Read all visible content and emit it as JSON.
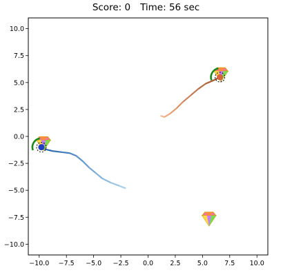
{
  "hud": {
    "score_label": "Score: 0",
    "time_label": "Time: 56 sec"
  },
  "axes": {
    "xlim": [
      -11,
      11
    ],
    "ylim": [
      -11,
      11
    ],
    "x_ticks": [
      -10.0,
      -7.5,
      -5.0,
      -2.5,
      0.0,
      2.5,
      5.0,
      7.5,
      10.0
    ],
    "x_tick_labels": [
      "−10.0",
      "−7.5",
      "−5.0",
      "−2.5",
      "0.0",
      "2.5",
      "5.0",
      "7.5",
      "10.0"
    ],
    "y_ticks": [
      10.0,
      7.5,
      5.0,
      2.5,
      0.0,
      -2.5,
      -5.0,
      -7.5,
      -10.0
    ],
    "y_tick_labels": [
      "10.0",
      "7.5",
      "5.0",
      "2.5",
      "0.0",
      "−2.5",
      "−5.0",
      "−7.5",
      "−10.0"
    ]
  },
  "game": {
    "agents": [
      {
        "name": "blue-agent",
        "color": "#1f3fbf",
        "position": [
          -9.8,
          -1.0
        ],
        "trail_color_start": "#1f5fa8",
        "trail_color_end": "#a8d0ea",
        "trail": [
          [
            -9.8,
            -1.0
          ],
          [
            -9.4,
            -1.2
          ],
          [
            -8.8,
            -1.35
          ],
          [
            -8.0,
            -1.45
          ],
          [
            -7.2,
            -1.55
          ],
          [
            -6.6,
            -1.8
          ],
          [
            -6.0,
            -2.3
          ],
          [
            -5.4,
            -2.9
          ],
          [
            -4.8,
            -3.4
          ],
          [
            -4.2,
            -3.9
          ],
          [
            -3.4,
            -4.3
          ],
          [
            -2.6,
            -4.6
          ],
          [
            -2.1,
            -4.8
          ]
        ],
        "heading_arc_color": "#1a8a1a"
      },
      {
        "name": "orange-agent",
        "color": "#d8643c",
        "position": [
          6.6,
          5.5
        ],
        "trail_color_start": "#a0522d",
        "trail_color_end": "#f5b88c",
        "trail": [
          [
            6.6,
            5.5
          ],
          [
            6.0,
            5.2
          ],
          [
            5.3,
            4.9
          ],
          [
            4.6,
            4.4
          ],
          [
            3.9,
            3.8
          ],
          [
            3.2,
            3.2
          ],
          [
            2.6,
            2.6
          ],
          [
            2.0,
            2.1
          ],
          [
            1.5,
            1.8
          ],
          [
            1.2,
            1.9
          ]
        ],
        "heading_arc_color": "#1a8a1a"
      }
    ],
    "gems": [
      {
        "name": "gem-left",
        "position": [
          -9.6,
          -0.6
        ]
      },
      {
        "name": "gem-upper-right",
        "position": [
          6.7,
          5.8
        ]
      },
      {
        "name": "gem-lower-right",
        "position": [
          5.6,
          -7.6
        ]
      }
    ]
  },
  "colors": {
    "gem_outline": "#c8a000",
    "gem_facets": [
      "#ff6fa8",
      "#7ed957",
      "#5ab8ff",
      "#ffd84a",
      "#c77dff",
      "#ff8c42"
    ]
  }
}
